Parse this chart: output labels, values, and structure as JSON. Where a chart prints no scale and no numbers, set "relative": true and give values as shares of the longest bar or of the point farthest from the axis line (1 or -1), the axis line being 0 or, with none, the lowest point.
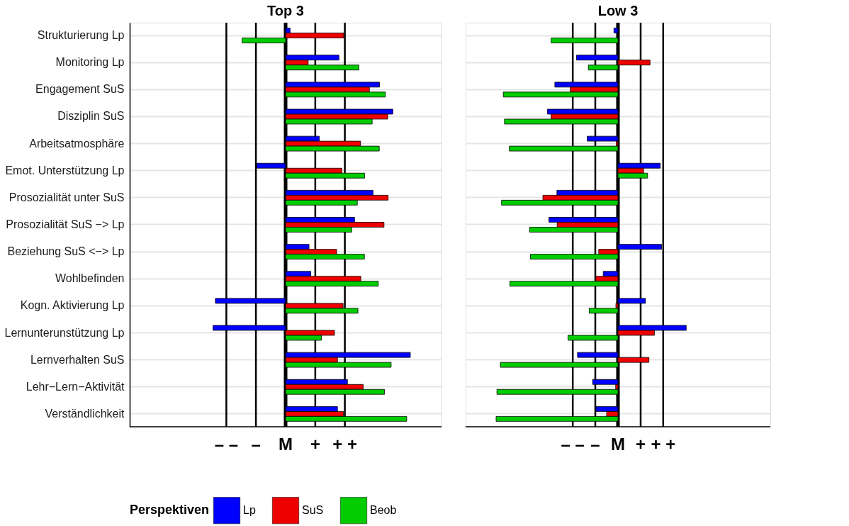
{
  "chart_data": [
    {
      "type": "bar",
      "orientation": "horizontal",
      "relative": true,
      "title": "Top 3",
      "legend_title": "Perspektiven",
      "legend": "bottom",
      "grid": "y",
      "categories": [
        "Strukturierung Lp",
        "Monitoring Lp",
        "Engagement SuS",
        "Disziplin SuS",
        "Arbeitsatmosphäre",
        "Emot. Unterstützung Lp",
        "Prosozialität unter SuS",
        "Prosozialität SuS −> Lp",
        "Beziehung SuS <−> Lp",
        "Wohlbefinden",
        "Kogn. Aktivierung Lp",
        "Lernunterunstützung Lp",
        "Lernverhalten SuS",
        "Lehr−Lern−Aktivität",
        "Verständlichkeit"
      ],
      "ref_lines": [
        {
          "axis": "x",
          "value": -0.475,
          "label": "– –"
        },
        {
          "axis": "x",
          "value": -0.238,
          "label": "–"
        },
        {
          "axis": "x",
          "value": 0,
          "label": "M"
        },
        {
          "axis": "x",
          "value": 0.238,
          "label": "+"
        },
        {
          "axis": "x",
          "value": 0.475,
          "label": "+ +"
        }
      ],
      "series": [
        {
          "name": "Lp",
          "color": "#0000ff",
          "values": [
            0.036,
            0.428,
            0.753,
            0.86,
            0.271,
            -0.23,
            0.701,
            0.553,
            0.188,
            0.202,
            -0.563,
            -0.582,
            1,
            0.496,
            0.416
          ]
        },
        {
          "name": "SuS",
          "color": "#ee0000",
          "values": [
            0.466,
            0.181,
            0.672,
            0.819,
            0.601,
            0.451,
            0.822,
            0.789,
            0.409,
            0.603,
            0.461,
            0.392,
            0.416,
            0.622,
            0.463
          ]
        },
        {
          "name": "Beob",
          "color": "#00cc00",
          "values": [
            -0.349,
            0.587,
            0.8,
            0.694,
            0.751,
            0.634,
            0.575,
            0.53,
            0.632,
            0.743,
            0.58,
            0.287,
            0.846,
            0.793,
            0.971
          ]
        }
      ]
    },
    {
      "type": "bar",
      "orientation": "horizontal",
      "relative": true,
      "title": "Low 3",
      "grid": "y",
      "categories": [
        null,
        null,
        null,
        null,
        null,
        null,
        null,
        null,
        null,
        null,
        null,
        null,
        null,
        null,
        null
      ],
      "ref_lines": [
        {
          "axis": "x",
          "value": -0.371,
          "label": "– –"
        },
        {
          "axis": "x",
          "value": -0.186,
          "label": "–"
        },
        {
          "axis": "x",
          "value": 0,
          "label": "M"
        },
        {
          "axis": "x",
          "value": 0.186,
          "label": "+"
        },
        {
          "axis": "x",
          "value": 0.371,
          "label": "+ +"
        }
      ],
      "series": [
        {
          "name": "Lp",
          "color": "#0000ff",
          "values": [
            -0.033,
            -0.34,
            -0.518,
            -0.579,
            -0.252,
            0.347,
            -0.501,
            -0.566,
            0.358,
            -0.121,
            0.226,
            0.56,
            -0.332,
            -0.208,
            -0.18
          ]
        },
        {
          "name": "SuS",
          "color": "#ee0000",
          "values": [
            null,
            0.263,
            -0.391,
            -0.549,
            -0.013,
            0.21,
            -0.616,
            -0.499,
            -0.158,
            -0.182,
            -0.017,
            0.299,
            0.254,
            -0.019,
            -0.093
          ]
        },
        {
          "name": "Beob",
          "color": "#00cc00",
          "values": [
            -0.549,
            -0.243,
            -0.941,
            -0.931,
            -0.891,
            0.243,
            -0.955,
            -0.725,
            -0.718,
            -0.887,
            -0.236,
            -0.41,
            -0.965,
            -0.993,
            -1
          ]
        }
      ]
    }
  ]
}
